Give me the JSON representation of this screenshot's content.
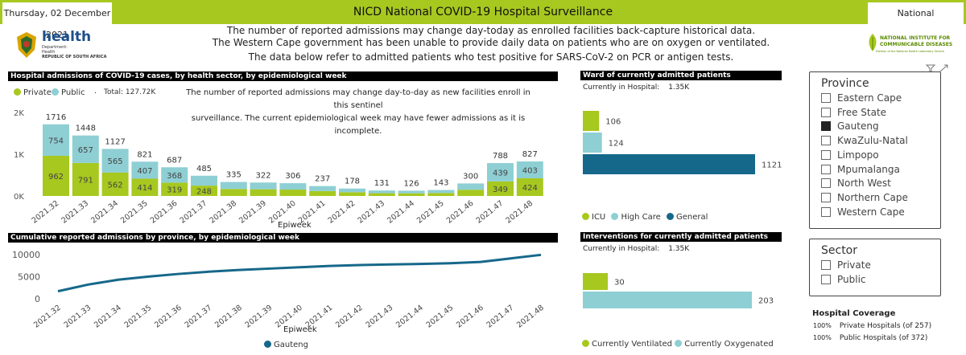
{
  "header": {
    "date": "Thursday, 02 December 2021",
    "title": "NICD National COVID-19 Hospital Surveillance",
    "scope": "National"
  },
  "logos": {
    "health_word": "health",
    "health_sub1": "Department:",
    "health_sub2": "Health",
    "health_sub3": "REPUBLIC OF SOUTH AFRICA",
    "nicd_line1": "NATIONAL INSTITUTE FOR",
    "nicd_line2": "COMMUNICABLE DISEASES",
    "nicd_line3": "Division of the National Health Laboratory Service"
  },
  "notice": [
    "The number of reported admissions may change day-today as enrolled facilities back-capture historical data.",
    "The Western Cape government has been unable to provide daily data on patients who are on oxygen or ventilated.",
    "The data below refer to admitted patients who test positive for SARS-CoV-2 on PCR or antigen tests."
  ],
  "admissions_panel": {
    "header": "Hospital admissions of COVID-19 cases, by health sector, by epidemiological week",
    "legend_private": "Private",
    "legend_public": "Public",
    "legend_sep": ".",
    "total": "Total: 127.72K",
    "note_line1": "The number of reported admissions may change day-to-day as new facilities enroll in this sentinel",
    "note_line2": "surveillance. The current epidemiological week may have fewer admissions as it is incomplete.",
    "xlabel": "Epiweek"
  },
  "cumulative_panel": {
    "header": "Cumulative reported admissions by province, by epidemiological week",
    "xlabel": "Epiweek",
    "legend": "Gauteng"
  },
  "ward_panel": {
    "header": "Ward of currently admitted patients",
    "currently_label": "Currently in Hospital:",
    "currently_value": "1.35K",
    "legend_icu": "ICU",
    "legend_high": "High Care",
    "legend_general": "General"
  },
  "interventions_panel": {
    "header": "Interventions for currently admitted patients",
    "currently_label": "Currently in Hospital:",
    "currently_value": "1.35K",
    "legend_vent": "Currently Ventilated",
    "legend_oxy": "Currently Oxygenated"
  },
  "province_slicer": {
    "title": "Province",
    "items": [
      {
        "label": "Eastern Cape",
        "checked": false
      },
      {
        "label": "Free State",
        "checked": false
      },
      {
        "label": "Gauteng",
        "checked": true
      },
      {
        "label": "KwaZulu-Natal",
        "checked": false
      },
      {
        "label": "Limpopo",
        "checked": false
      },
      {
        "label": "Mpumalanga",
        "checked": false
      },
      {
        "label": "North West",
        "checked": false
      },
      {
        "label": "Northern Cape",
        "checked": false
      },
      {
        "label": "Western Cape",
        "checked": false
      }
    ]
  },
  "sector_slicer": {
    "title": "Sector",
    "items": [
      {
        "label": "Private",
        "checked": false
      },
      {
        "label": "Public",
        "checked": false
      }
    ]
  },
  "coverage": {
    "title": "Hospital Coverage",
    "rows": [
      {
        "pct": "100%",
        "label": "Private Hospitals (of 257)"
      },
      {
        "pct": "100%",
        "label": "Public Hospitals (of 372)"
      }
    ]
  },
  "colors": {
    "accent": "#a7c81f",
    "private": "#a7c81f",
    "public": "#8ecfd4",
    "general": "#16688a",
    "line": "#16688a"
  },
  "chart_data": [
    {
      "type": "bar",
      "title": "Hospital admissions of COVID-19 cases, by health sector, by epidemiological week",
      "xlabel": "Epiweek",
      "ylabel": "",
      "categories": [
        "2021.32",
        "2021.33",
        "2021.34",
        "2021.35",
        "2021.36",
        "2021.37",
        "2021.38",
        "2021.39",
        "2021.40",
        "2021.41",
        "2021.42",
        "2021.43",
        "2021.44",
        "2021.45",
        "2021.46",
        "2021.47",
        "2021.48"
      ],
      "series": [
        {
          "name": "Private",
          "values": [
            962,
            791,
            562,
            414,
            319,
            248,
            null,
            null,
            null,
            null,
            null,
            null,
            null,
            null,
            null,
            349,
            424
          ]
        },
        {
          "name": "Public",
          "values": [
            754,
            657,
            565,
            407,
            368,
            null,
            null,
            null,
            null,
            null,
            null,
            null,
            null,
            null,
            null,
            439,
            403
          ]
        }
      ],
      "totals": [
        1716,
        1448,
        1127,
        821,
        687,
        485,
        335,
        322,
        306,
        237,
        178,
        131,
        126,
        143,
        300,
        788,
        827
      ],
      "yticks": [
        "0K",
        "1K",
        "2K"
      ],
      "ylim": [
        0,
        2000
      ]
    },
    {
      "type": "line",
      "title": "Cumulative reported admissions by province, by epidemiological week",
      "xlabel": "Epiweek",
      "x": [
        "2021.32",
        "2021.33",
        "2021.34",
        "2021.35",
        "2021.36",
        "2021.37",
        "2021.38",
        "2021.39",
        "2021.40",
        "2021.41",
        "2021.42",
        "2021.43",
        "2021.44",
        "2021.45",
        "2021.46",
        "2021.47",
        "2021.48"
      ],
      "series": [
        {
          "name": "Gauteng",
          "values": [
            1700,
            3200,
            4300,
            5000,
            5600,
            6100,
            6500,
            6800,
            7100,
            7400,
            7600,
            7750,
            7850,
            8000,
            8300,
            9100,
            9900
          ]
        }
      ],
      "yticks": [
        "0",
        "5000",
        "10000"
      ],
      "ylim": [
        0,
        10500
      ]
    },
    {
      "type": "bar",
      "title": "Ward of currently admitted patients",
      "categories": [
        "ICU",
        "High Care",
        "General"
      ],
      "values": [
        106,
        124,
        1121
      ]
    },
    {
      "type": "bar",
      "title": "Interventions for currently admitted patients",
      "categories": [
        "Currently Ventilated",
        "Currently Oxygenated"
      ],
      "values": [
        30,
        203
      ]
    }
  ]
}
